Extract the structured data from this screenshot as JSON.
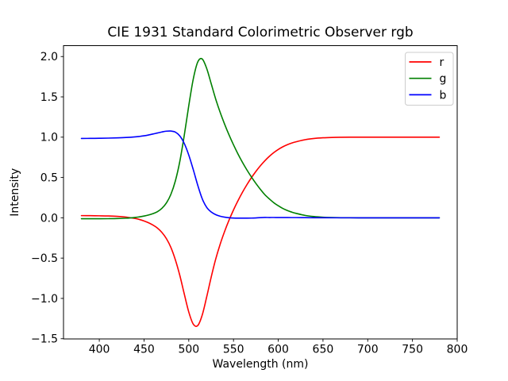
{
  "figure": {
    "background": "#ffffff"
  },
  "chart_data": {
    "type": "line",
    "title": "CIE 1931 Standard Colorimetric Observer rgb",
    "xlabel": "Wavelength (nm)",
    "ylabel": "Intensity",
    "xlim": [
      360,
      800
    ],
    "ylim": [
      -1.5025,
      2.1353
    ],
    "xticks": [
      400,
      450,
      500,
      550,
      600,
      650,
      700,
      750,
      800
    ],
    "yticks": [
      -1.5,
      -1.0,
      -0.5,
      0.0,
      0.5,
      1.0,
      1.5,
      2.0
    ],
    "xtick_labels": [
      "400",
      "450",
      "500",
      "550",
      "600",
      "650",
      "700",
      "750",
      "800"
    ],
    "ytick_labels": [
      "−1.5",
      "−1.0",
      "−0.5",
      "0.0",
      "0.5",
      "1.0",
      "1.5",
      "2.0"
    ],
    "grid": false,
    "legend": {
      "position": "upper right",
      "entries": [
        {
          "label": "r",
          "color": "#ff0000"
        },
        {
          "label": "g",
          "color": "#008000"
        },
        {
          "label": "b",
          "color": "#0000ff"
        }
      ]
    },
    "x": [
      380,
      390,
      400,
      410,
      420,
      430,
      440,
      445,
      450,
      455,
      460,
      465,
      470,
      475,
      480,
      485,
      490,
      495,
      500,
      505,
      510,
      515,
      520,
      525,
      530,
      535,
      540,
      545,
      550,
      555,
      560,
      565,
      570,
      575,
      580,
      585,
      590,
      595,
      600,
      605,
      610,
      615,
      620,
      630,
      640,
      650,
      660,
      670,
      680,
      690,
      700,
      710,
      720,
      730,
      740,
      750,
      760,
      770,
      780
    ],
    "series": [
      {
        "name": "r",
        "color": "#ff0000",
        "values": [
          0.0272,
          0.0263,
          0.0247,
          0.0225,
          0.0181,
          0.0088,
          -0.0084,
          -0.0213,
          -0.039,
          -0.0618,
          -0.0909,
          -0.1281,
          -0.1821,
          -0.2584,
          -0.3667,
          -0.52,
          -0.715,
          -0.9459,
          -1.1685,
          -1.3182,
          -1.3371,
          -1.2076,
          -0.983,
          -0.7386,
          -0.5159,
          -0.3304,
          -0.1707,
          -0.0293,
          0.0974,
          0.2121,
          0.3164,
          0.4112,
          0.4973,
          0.5751,
          0.6449,
          0.7071,
          0.7617,
          0.8087,
          0.8475,
          0.88,
          0.9059,
          0.9265,
          0.9425,
          0.9687,
          0.9839,
          0.9924,
          0.9967,
          0.9987,
          0.9996,
          1.0,
          1.0,
          1.0,
          1.0,
          1.0,
          1.0,
          1.0,
          1.0,
          1.0,
          1.0
        ]
      },
      {
        "name": "g",
        "color": "#008000",
        "values": [
          -0.0115,
          -0.0114,
          -0.0112,
          -0.0109,
          -0.0094,
          -0.0048,
          0.0048,
          0.012,
          0.0218,
          0.0345,
          0.0517,
          0.0762,
          0.1175,
          0.184,
          0.2906,
          0.4568,
          0.6996,
          1.0247,
          1.3905,
          1.7195,
          1.9318,
          1.9699,
          1.8534,
          1.6662,
          1.4761,
          1.3105,
          1.1628,
          1.0282,
          0.9051,
          0.7919,
          0.6881,
          0.5932,
          0.5063,
          0.4263,
          0.3533,
          0.2868,
          0.2347,
          0.1875,
          0.1495,
          0.1166,
          0.0912,
          0.071,
          0.055,
          0.0296,
          0.0151,
          0.0071,
          0.0031,
          0.0012,
          0.0003,
          0.0,
          0.0,
          0.0,
          0.0,
          0.0,
          0.0,
          0.0,
          0.0,
          0.0,
          0.0
        ]
      },
      {
        "name": "b",
        "color": "#0000ff",
        "values": [
          0.9843,
          0.9851,
          0.9865,
          0.9884,
          0.9913,
          0.996,
          1.0036,
          1.0093,
          1.0172,
          1.0273,
          1.0392,
          1.0519,
          1.0646,
          1.0744,
          1.0761,
          1.0632,
          1.0154,
          0.9212,
          0.778,
          0.5987,
          0.4053,
          0.2377,
          0.1296,
          0.0724,
          0.0398,
          0.0199,
          0.0079,
          0.0011,
          -0.0025,
          -0.004,
          -0.0045,
          -0.0044,
          -0.0036,
          -0.0014,
          0.0018,
          0.004,
          0.0036,
          0.0038,
          0.003,
          0.0034,
          0.0029,
          0.0025,
          0.0025,
          0.0017,
          0.001,
          0.0005,
          0.0002,
          0.0001,
          0.0001,
          0.0,
          0.0,
          0.0,
          0.0,
          0.0,
          0.0,
          0.0,
          0.0,
          0.0,
          0.0
        ]
      }
    ]
  }
}
